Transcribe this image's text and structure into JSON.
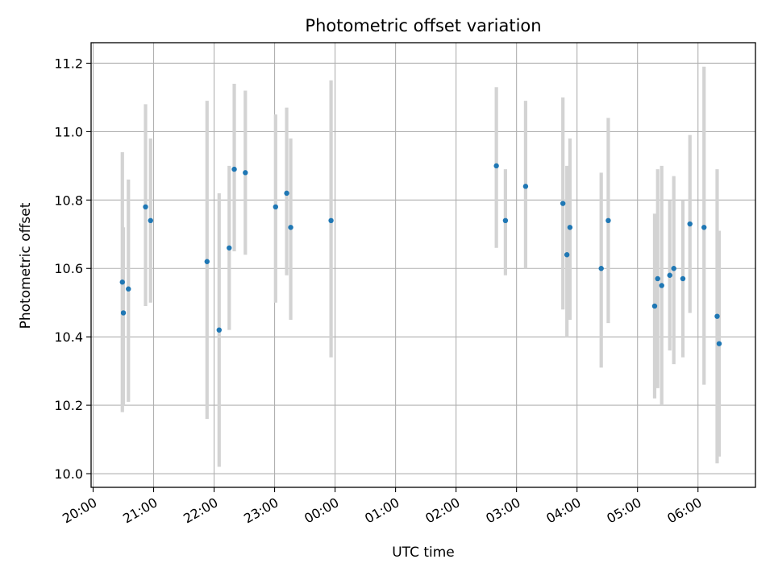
{
  "chart_data": {
    "type": "scatter",
    "title": "Photometric offset variation",
    "xlabel": "UTC time",
    "ylabel": "Photometric offset",
    "x_axis_kind": "time",
    "xlim": [
      "19:58",
      "06:57"
    ],
    "ylim": [
      9.96,
      11.26
    ],
    "grid": true,
    "x_ticks": [
      "20:00",
      "21:00",
      "22:00",
      "23:00",
      "00:00",
      "01:00",
      "02:00",
      "03:00",
      "04:00",
      "05:00",
      "06:00"
    ],
    "y_ticks": [
      "10.0",
      "10.2",
      "10.4",
      "10.6",
      "10.8",
      "11.0",
      "11.2"
    ],
    "colors": {
      "marker": "#1f77b4",
      "errorbar": "#d3d3d3",
      "grid": "#b0b0b0",
      "axes": "#000000"
    },
    "series": [
      {
        "points": [
          {
            "t": "20:29",
            "y": 10.56,
            "lo": 10.18,
            "hi": 10.94
          },
          {
            "t": "20:30",
            "y": 10.47,
            "lo": 10.2,
            "hi": 10.72
          },
          {
            "t": "20:35",
            "y": 10.54,
            "lo": 10.21,
            "hi": 10.86
          },
          {
            "t": "20:52",
            "y": 10.78,
            "lo": 10.49,
            "hi": 11.08
          },
          {
            "t": "20:57",
            "y": 10.74,
            "lo": 10.5,
            "hi": 10.98
          },
          {
            "t": "21:53",
            "y": 10.62,
            "lo": 10.16,
            "hi": 11.09
          },
          {
            "t": "22:05",
            "y": 10.42,
            "lo": 10.02,
            "hi": 10.82
          },
          {
            "t": "22:15",
            "y": 10.66,
            "lo": 10.42,
            "hi": 10.9
          },
          {
            "t": "22:20",
            "y": 10.89,
            "lo": 10.65,
            "hi": 11.14
          },
          {
            "t": "22:31",
            "y": 10.88,
            "lo": 10.64,
            "hi": 11.12
          },
          {
            "t": "23:01",
            "y": 10.78,
            "lo": 10.5,
            "hi": 11.05
          },
          {
            "t": "23:12",
            "y": 10.82,
            "lo": 10.58,
            "hi": 11.07
          },
          {
            "t": "23:16",
            "y": 10.72,
            "lo": 10.45,
            "hi": 10.98
          },
          {
            "t": "23:56",
            "y": 10.74,
            "lo": 10.34,
            "hi": 11.15
          },
          {
            "t": "02:40",
            "y": 10.9,
            "lo": 10.66,
            "hi": 11.13
          },
          {
            "t": "02:49",
            "y": 10.74,
            "lo": 10.58,
            "hi": 10.89
          },
          {
            "t": "03:09",
            "y": 10.84,
            "lo": 10.6,
            "hi": 11.09
          },
          {
            "t": "03:46",
            "y": 10.79,
            "lo": 10.48,
            "hi": 11.1
          },
          {
            "t": "03:50",
            "y": 10.64,
            "lo": 10.4,
            "hi": 10.9
          },
          {
            "t": "03:53",
            "y": 10.72,
            "lo": 10.45,
            "hi": 10.98
          },
          {
            "t": "04:24",
            "y": 10.6,
            "lo": 10.31,
            "hi": 10.88
          },
          {
            "t": "04:31",
            "y": 10.74,
            "lo": 10.44,
            "hi": 11.04
          },
          {
            "t": "05:17",
            "y": 10.49,
            "lo": 10.22,
            "hi": 10.76
          },
          {
            "t": "05:20",
            "y": 10.57,
            "lo": 10.25,
            "hi": 10.89
          },
          {
            "t": "05:24",
            "y": 10.55,
            "lo": 10.2,
            "hi": 10.9
          },
          {
            "t": "05:32",
            "y": 10.58,
            "lo": 10.36,
            "hi": 10.8
          },
          {
            "t": "05:36",
            "y": 10.6,
            "lo": 10.32,
            "hi": 10.87
          },
          {
            "t": "05:45",
            "y": 10.57,
            "lo": 10.34,
            "hi": 10.8
          },
          {
            "t": "05:52",
            "y": 10.73,
            "lo": 10.47,
            "hi": 10.99
          },
          {
            "t": "06:06",
            "y": 10.72,
            "lo": 10.26,
            "hi": 11.19
          },
          {
            "t": "06:19",
            "y": 10.46,
            "lo": 10.03,
            "hi": 10.89
          },
          {
            "t": "06:21",
            "y": 10.38,
            "lo": 10.05,
            "hi": 10.71
          }
        ]
      }
    ]
  }
}
